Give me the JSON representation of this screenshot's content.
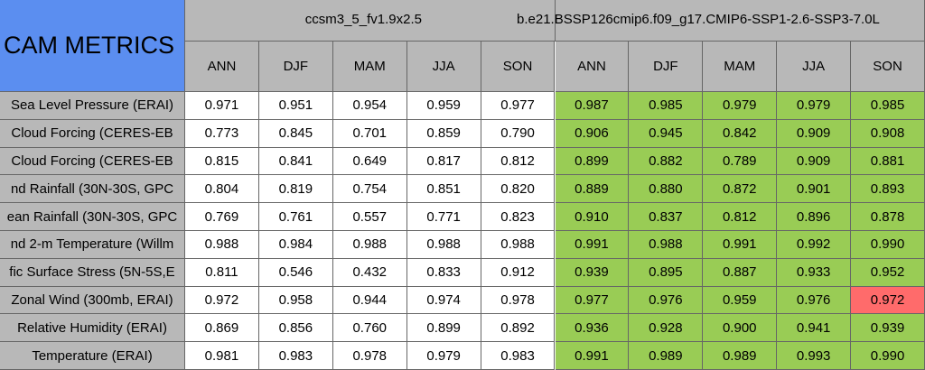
{
  "header": {
    "title": "CAM METRICS",
    "groups": [
      "ccsm3_5_fv1.9x2.5",
      "b.e21.BSSP126cmip6.f09_g17.CMIP6-SSP1-2.6-SSP3-7.0L"
    ],
    "columns": [
      "ANN",
      "DJF",
      "MAM",
      "JJA",
      "SON",
      "ANN",
      "DJF",
      "MAM",
      "JJA",
      "SON"
    ]
  },
  "table": {
    "rows": [
      {
        "label": "Sea Level Pressure (ERAI)",
        "values": [
          "0.971",
          "0.951",
          "0.954",
          "0.959",
          "0.977",
          "0.987",
          "0.985",
          "0.979",
          "0.979",
          "0.985"
        ]
      },
      {
        "label": "Cloud Forcing (CERES-EB",
        "values": [
          "0.773",
          "0.845",
          "0.701",
          "0.859",
          "0.790",
          "0.906",
          "0.945",
          "0.842",
          "0.909",
          "0.908"
        ]
      },
      {
        "label": "Cloud Forcing (CERES-EB",
        "values": [
          "0.815",
          "0.841",
          "0.649",
          "0.817",
          "0.812",
          "0.899",
          "0.882",
          "0.789",
          "0.909",
          "0.881"
        ]
      },
      {
        "label": "nd Rainfall (30N-30S, GPC",
        "values": [
          "0.804",
          "0.819",
          "0.754",
          "0.851",
          "0.820",
          "0.889",
          "0.880",
          "0.872",
          "0.901",
          "0.893"
        ]
      },
      {
        "label": "ean Rainfall (30N-30S, GPC",
        "values": [
          "0.769",
          "0.761",
          "0.557",
          "0.771",
          "0.823",
          "0.910",
          "0.837",
          "0.812",
          "0.896",
          "0.878"
        ]
      },
      {
        "label": "nd 2-m Temperature (Willm",
        "values": [
          "0.988",
          "0.984",
          "0.988",
          "0.988",
          "0.988",
          "0.991",
          "0.988",
          "0.991",
          "0.992",
          "0.990"
        ]
      },
      {
        "label": "fic Surface Stress (5N-5S,E",
        "values": [
          "0.811",
          "0.546",
          "0.432",
          "0.833",
          "0.912",
          "0.939",
          "0.895",
          "0.887",
          "0.933",
          "0.952"
        ]
      },
      {
        "label": "Zonal Wind (300mb, ERAI)",
        "values": [
          "0.972",
          "0.958",
          "0.944",
          "0.974",
          "0.978",
          "0.977",
          "0.976",
          "0.959",
          "0.976",
          "0.972"
        ]
      },
      {
        "label": "Relative Humidity (ERAI)",
        "values": [
          "0.869",
          "0.856",
          "0.760",
          "0.899",
          "0.892",
          "0.936",
          "0.928",
          "0.900",
          "0.941",
          "0.939"
        ]
      },
      {
        "label": "Temperature (ERAI)",
        "values": [
          "0.981",
          "0.983",
          "0.978",
          "0.979",
          "0.983",
          "0.991",
          "0.989",
          "0.989",
          "0.993",
          "0.990"
        ]
      }
    ]
  }
}
